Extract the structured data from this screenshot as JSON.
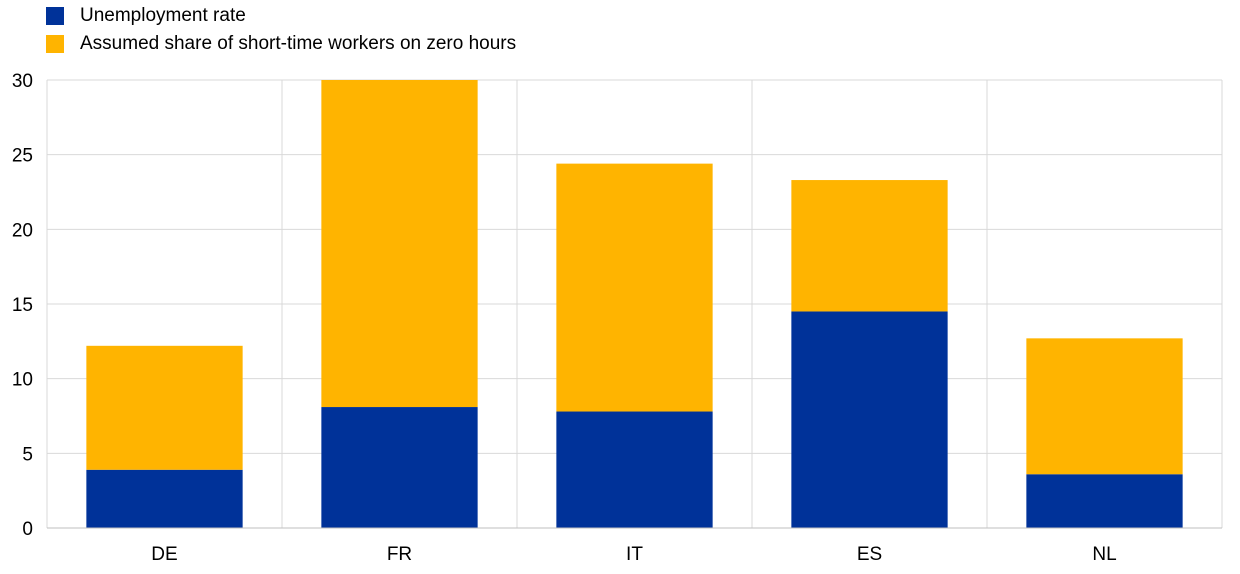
{
  "chart_data": {
    "type": "bar",
    "stacked": true,
    "title": "",
    "xlabel": "",
    "ylabel": "",
    "categories": [
      "DE",
      "FR",
      "IT",
      "ES",
      "NL"
    ],
    "ylim": [
      0,
      30
    ],
    "yticks": [
      "0",
      "5",
      "10",
      "15",
      "20",
      "25",
      "30"
    ],
    "grid": true,
    "legend_position": "top-left",
    "series": [
      {
        "name": "Unemployment rate",
        "color": "#003299",
        "values": [
          3.9,
          8.1,
          7.8,
          14.5,
          3.6
        ]
      },
      {
        "name": "Assumed share of short-time workers on zero hours",
        "color": "#FFB400",
        "values": [
          8.3,
          21.9,
          16.6,
          8.8,
          9.1
        ]
      }
    ]
  }
}
